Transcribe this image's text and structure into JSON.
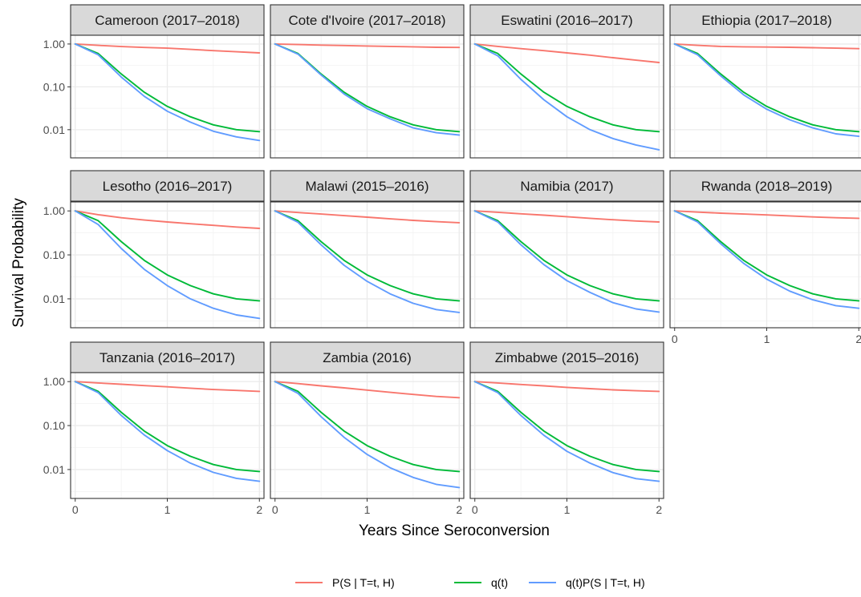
{
  "chart_data": {
    "type": "line",
    "xlabel": "Years Since Seroconversion",
    "ylabel": "Survival Probability",
    "y_scale": "log10",
    "xlim": [
      -0.05,
      2.05
    ],
    "ylim": [
      0.0022,
      1.6
    ],
    "x_ticks": [
      0,
      1,
      2
    ],
    "x_tick_labels": [
      "0",
      "1",
      "2"
    ],
    "y_ticks": [
      1.0,
      0.1,
      0.01
    ],
    "y_tick_labels": [
      "1.00",
      "0.10",
      "0.01"
    ],
    "grid": true,
    "legend_position": "bottom",
    "series_defs": [
      {
        "key": "pst",
        "name": "P(S | T=t, H)",
        "color": "#F8766D"
      },
      {
        "key": "qt",
        "name": "q(t)",
        "color": "#00BA38"
      },
      {
        "key": "qtpst",
        "name": "q(t)P(S | T=t, H)",
        "color": "#619CFF"
      }
    ],
    "panels": [
      {
        "title": "Cameroon (2017–2018)",
        "x": [
          0,
          0.25,
          0.5,
          0.75,
          1.0,
          1.25,
          1.5,
          1.75,
          2.0
        ],
        "series": {
          "pst": [
            1.0,
            0.93,
            0.87,
            0.83,
            0.8,
            0.75,
            0.7,
            0.66,
            0.62
          ],
          "qt": [
            1.0,
            0.6,
            0.2,
            0.075,
            0.035,
            0.02,
            0.013,
            0.01,
            0.009
          ],
          "qtpst": [
            1.0,
            0.56,
            0.17,
            0.06,
            0.027,
            0.015,
            0.0092,
            0.0068,
            0.0056
          ]
        }
      },
      {
        "title": "Cote d'Ivoire (2017–2018)",
        "x": [
          0,
          0.25,
          0.5,
          0.75,
          1.0,
          1.25,
          1.5,
          1.75,
          2.0
        ],
        "series": {
          "pst": [
            1.0,
            0.97,
            0.94,
            0.92,
            0.9,
            0.88,
            0.86,
            0.84,
            0.83
          ],
          "qt": [
            1.0,
            0.6,
            0.2,
            0.075,
            0.035,
            0.02,
            0.013,
            0.01,
            0.009
          ],
          "qtpst": [
            1.0,
            0.58,
            0.19,
            0.068,
            0.031,
            0.018,
            0.011,
            0.0085,
            0.0075
          ]
        }
      },
      {
        "title": "Eswatini (2016–2017)",
        "x": [
          0,
          0.25,
          0.5,
          0.75,
          1.0,
          1.25,
          1.5,
          1.75,
          2.0
        ],
        "series": {
          "pst": [
            1.0,
            0.88,
            0.78,
            0.7,
            0.62,
            0.55,
            0.48,
            0.42,
            0.37
          ],
          "qt": [
            1.0,
            0.6,
            0.2,
            0.075,
            0.035,
            0.02,
            0.013,
            0.01,
            0.009
          ],
          "qtpst": [
            1.0,
            0.53,
            0.15,
            0.05,
            0.02,
            0.01,
            0.0062,
            0.0044,
            0.0034
          ]
        }
      },
      {
        "title": "Ethiopia (2017–2018)",
        "x": [
          0,
          0.25,
          0.5,
          0.75,
          1.0,
          1.25,
          1.5,
          1.75,
          2.0
        ],
        "series": {
          "pst": [
            1.0,
            0.93,
            0.88,
            0.86,
            0.85,
            0.84,
            0.82,
            0.8,
            0.78
          ],
          "qt": [
            1.0,
            0.6,
            0.2,
            0.075,
            0.035,
            0.02,
            0.013,
            0.01,
            0.009
          ],
          "qtpst": [
            1.0,
            0.56,
            0.18,
            0.065,
            0.03,
            0.017,
            0.011,
            0.008,
            0.007
          ]
        }
      },
      {
        "title": "Lesotho (2016–2017)",
        "x": [
          0,
          0.25,
          0.5,
          0.75,
          1.0,
          1.25,
          1.5,
          1.75,
          2.0
        ],
        "series": {
          "pst": [
            1.0,
            0.82,
            0.7,
            0.62,
            0.56,
            0.51,
            0.47,
            0.43,
            0.4
          ],
          "qt": [
            1.0,
            0.6,
            0.2,
            0.075,
            0.035,
            0.02,
            0.013,
            0.01,
            0.009
          ],
          "qtpst": [
            1.0,
            0.49,
            0.14,
            0.047,
            0.02,
            0.01,
            0.0061,
            0.0043,
            0.0036
          ]
        }
      },
      {
        "title": "Malawi (2015–2016)",
        "x": [
          0,
          0.25,
          0.5,
          0.75,
          1.0,
          1.25,
          1.5,
          1.75,
          2.0
        ],
        "series": {
          "pst": [
            1.0,
            0.92,
            0.85,
            0.78,
            0.72,
            0.66,
            0.61,
            0.57,
            0.54
          ],
          "qt": [
            1.0,
            0.6,
            0.2,
            0.075,
            0.035,
            0.02,
            0.013,
            0.01,
            0.009
          ],
          "qtpst": [
            1.0,
            0.55,
            0.17,
            0.058,
            0.025,
            0.013,
            0.0079,
            0.0057,
            0.0049
          ]
        }
      },
      {
        "title": "Namibia (2017)",
        "x": [
          0,
          0.25,
          0.5,
          0.75,
          1.0,
          1.25,
          1.5,
          1.75,
          2.0
        ],
        "series": {
          "pst": [
            1.0,
            0.93,
            0.86,
            0.8,
            0.74,
            0.68,
            0.63,
            0.59,
            0.56
          ],
          "qt": [
            1.0,
            0.6,
            0.2,
            0.075,
            0.035,
            0.02,
            0.013,
            0.01,
            0.009
          ],
          "qtpst": [
            1.0,
            0.56,
            0.17,
            0.06,
            0.026,
            0.014,
            0.0082,
            0.0059,
            0.005
          ]
        }
      },
      {
        "title": "Rwanda (2018–2019)",
        "x": [
          0,
          0.25,
          0.5,
          0.75,
          1.0,
          1.25,
          1.5,
          1.75,
          2.0
        ],
        "series": {
          "pst": [
            1.0,
            0.94,
            0.89,
            0.85,
            0.81,
            0.77,
            0.73,
            0.7,
            0.68
          ],
          "qt": [
            1.0,
            0.6,
            0.2,
            0.075,
            0.035,
            0.02,
            0.013,
            0.01,
            0.009
          ],
          "qtpst": [
            1.0,
            0.56,
            0.18,
            0.064,
            0.028,
            0.015,
            0.0095,
            0.007,
            0.0061
          ]
        }
      },
      {
        "title": "Tanzania (2016–2017)",
        "x": [
          0,
          0.25,
          0.5,
          0.75,
          1.0,
          1.25,
          1.5,
          1.75,
          2.0
        ],
        "series": {
          "pst": [
            1.0,
            0.93,
            0.87,
            0.81,
            0.76,
            0.71,
            0.66,
            0.63,
            0.6
          ],
          "qt": [
            1.0,
            0.6,
            0.2,
            0.075,
            0.035,
            0.02,
            0.013,
            0.01,
            0.009
          ],
          "qtpst": [
            1.0,
            0.56,
            0.17,
            0.061,
            0.027,
            0.014,
            0.0086,
            0.0063,
            0.0054
          ]
        }
      },
      {
        "title": "Zambia (2016)",
        "x": [
          0,
          0.25,
          0.5,
          0.75,
          1.0,
          1.25,
          1.5,
          1.75,
          2.0
        ],
        "series": {
          "pst": [
            1.0,
            0.9,
            0.8,
            0.72,
            0.64,
            0.57,
            0.51,
            0.46,
            0.43
          ],
          "qt": [
            1.0,
            0.6,
            0.2,
            0.075,
            0.035,
            0.02,
            0.013,
            0.01,
            0.009
          ],
          "qtpst": [
            1.0,
            0.54,
            0.16,
            0.054,
            0.022,
            0.011,
            0.0066,
            0.0046,
            0.0039
          ]
        }
      },
      {
        "title": "Zimbabwe (2015–2016)",
        "x": [
          0,
          0.25,
          0.5,
          0.75,
          1.0,
          1.25,
          1.5,
          1.75,
          2.0
        ],
        "series": {
          "pst": [
            1.0,
            0.93,
            0.86,
            0.8,
            0.74,
            0.69,
            0.65,
            0.62,
            0.6
          ],
          "qt": [
            1.0,
            0.6,
            0.2,
            0.075,
            0.035,
            0.02,
            0.013,
            0.01,
            0.009
          ],
          "qtpst": [
            1.0,
            0.56,
            0.17,
            0.06,
            0.026,
            0.014,
            0.0085,
            0.0062,
            0.0054
          ]
        }
      }
    ]
  }
}
